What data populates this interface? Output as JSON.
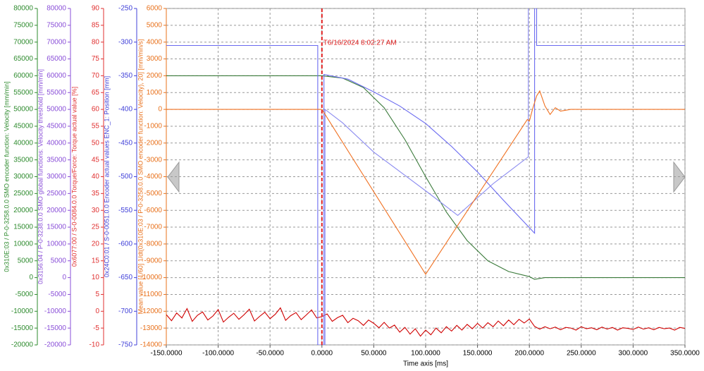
{
  "chart_data": {
    "type": "line",
    "xlabel": "Time axis [ms]",
    "xlim": [
      -150,
      350
    ],
    "xticks": [
      {
        "value": -150,
        "label": "-150.0000"
      },
      {
        "value": -100,
        "label": "-100.0000"
      },
      {
        "value": -50,
        "label": "-50.0000"
      },
      {
        "value": 0,
        "label": "0.0000"
      },
      {
        "value": 50,
        "label": "50.0000"
      },
      {
        "value": 100,
        "label": "100.0000"
      },
      {
        "value": 150,
        "label": "150.0000"
      },
      {
        "value": 200,
        "label": "200.0000"
      },
      {
        "value": 250,
        "label": "250.0000"
      },
      {
        "value": 300,
        "label": "300.0000"
      },
      {
        "value": 350,
        "label": "350.0000"
      }
    ],
    "grid": true,
    "cursor": {
      "x": 0,
      "label": "T6/16/2024 8:02:27 AM",
      "color": "#e02020"
    },
    "y_axes": [
      {
        "label": "0x310E:03 / P-0-3258.0.0 SMO encoder function: Velocity [mm/min]",
        "color": "#2e8b2e",
        "ylim": [
          -20000,
          80000
        ],
        "yticks": [
          -20000,
          -15000,
          -10000,
          -5000,
          0,
          5000,
          10000,
          15000,
          20000,
          25000,
          30000,
          35000,
          40000,
          45000,
          50000,
          55000,
          60000,
          65000,
          70000,
          75000,
          80000
        ]
      },
      {
        "label": "0x3156:04 / P-0-3238.0.0 SMO global functions: Velocity threshold [mm/min]",
        "color": "#8a4fd8",
        "ylim": [
          -20000,
          80000
        ],
        "yticks": [
          -20000,
          -15000,
          -10000,
          -5000,
          0,
          5000,
          10000,
          15000,
          20000,
          25000,
          30000,
          35000,
          40000,
          45000,
          50000,
          55000,
          60000,
          65000,
          70000,
          75000,
          80000
        ]
      },
      {
        "label": "0x6077:00 / S-0-0084.0.0 Torque/Force: Torque actual value [%]",
        "color": "#e03030",
        "ylim": [
          -10,
          90
        ],
        "yticks": [
          -10,
          -5,
          0,
          5,
          10,
          15,
          20,
          25,
          30,
          35,
          40,
          45,
          50,
          55,
          60,
          65,
          70,
          75,
          80,
          85,
          90
        ]
      },
      {
        "label": "0x24C0:01 / S-0-0051.0.0 Encoder actual values ENC_1: Position [mm]",
        "color": "#4040d8",
        "ylim": [
          -750,
          -250
        ],
        "yticks": [
          -750,
          -700,
          -650,
          -600,
          -550,
          -500,
          -450,
          -400,
          -350,
          -300,
          -250
        ]
      },
      {
        "label": "Mean value [1/60] 1/dt(0x310E:03 / P-0-3258.0.0 SMO encoder function: Velocity), 20] [mm/min/s]",
        "color": "#e8701a",
        "ylim": [
          -14000,
          6000
        ],
        "yticks": [
          -14000,
          -13000,
          -12000,
          -11000,
          -10000,
          -9000,
          -8000,
          -7000,
          -6000,
          -5000,
          -4000,
          -3000,
          -2000,
          -1000,
          0,
          1000,
          2000,
          3000,
          4000,
          5000,
          6000
        ]
      }
    ],
    "series": [
      {
        "color": "#d00000",
        "axis": 2,
        "x": [
          -150,
          -145,
          -140,
          -135,
          -130,
          -125,
          -120,
          -115,
          -110,
          -105,
          -100,
          -95,
          -90,
          -85,
          -80,
          -75,
          -70,
          -65,
          -60,
          -55,
          -50,
          -45,
          -40,
          -35,
          -30,
          -25,
          -20,
          -15,
          -10,
          -5,
          0,
          5,
          10,
          15,
          20,
          25,
          30,
          35,
          40,
          45,
          50,
          55,
          60,
          65,
          70,
          75,
          80,
          85,
          90,
          95,
          100,
          105,
          110,
          115,
          120,
          125,
          130,
          135,
          140,
          145,
          150,
          155,
          160,
          165,
          170,
          175,
          180,
          185,
          190,
          195,
          200,
          205,
          210,
          215,
          220,
          225,
          230,
          235,
          240,
          245,
          250,
          255,
          260,
          265,
          270,
          275,
          280,
          285,
          290,
          295,
          300,
          305,
          310,
          315,
          320,
          325,
          330,
          335,
          340,
          345,
          350
        ],
        "values": [
          -1.0,
          -2.8,
          -0.5,
          -2.0,
          0.8,
          -3.0,
          -1.2,
          -0.2,
          -2.6,
          -1.4,
          0.5,
          -3.2,
          -1.8,
          -0.6,
          -2.4,
          -1.0,
          0.6,
          -2.9,
          -1.5,
          -0.3,
          -2.2,
          -0.9,
          1.0,
          -2.7,
          -1.3,
          -0.4,
          -2.5,
          -1.1,
          0.4,
          -2.0,
          -1.6,
          -0.8,
          -3.0,
          -1.9,
          -1.2,
          -3.4,
          -2.1,
          -2.8,
          -4.2,
          -2.6,
          -3.6,
          -4.9,
          -3.3,
          -5.0,
          -4.1,
          -6.2,
          -4.8,
          -6.8,
          -5.2,
          -7.4,
          -5.6,
          -7.0,
          -5.0,
          -6.4,
          -4.6,
          -5.9,
          -4.2,
          -5.6,
          -3.9,
          -5.2,
          -3.6,
          -5.0,
          -3.4,
          -4.6,
          -2.9,
          -4.3,
          -2.6,
          -4.0,
          -2.4,
          -3.5,
          -2.3,
          -4.5,
          -5.3,
          -4.6,
          -5.2,
          -4.7,
          -5.5,
          -4.8,
          -5.0,
          -5.6,
          -4.6,
          -5.2,
          -4.9,
          -5.5,
          -4.7,
          -5.3,
          -4.8,
          -5.6,
          -4.9,
          -5.1,
          -5.4,
          -4.7,
          -5.3,
          -4.9,
          -5.5,
          -4.8,
          -5.2,
          -5.0,
          -5.6,
          -4.8,
          -5.1
        ]
      },
      {
        "color": "#3a7a3a",
        "axis": 0,
        "x": [
          -150,
          0,
          20,
          40,
          60,
          80,
          100,
          120,
          140,
          160,
          180,
          200,
          205,
          215,
          350
        ],
        "values": [
          60000,
          60000,
          59300,
          56500,
          50500,
          41000,
          30000,
          19500,
          11000,
          5000,
          1800,
          300,
          -500,
          0,
          0
        ]
      },
      {
        "color": "#6a6af0",
        "axis": 3,
        "x": [
          -150,
          -4,
          -4,
          2,
          2,
          25,
          50,
          75,
          100,
          125,
          150,
          175,
          205,
          205,
          207,
          207,
          350
        ],
        "values": [
          -305,
          -305,
          -750,
          -750,
          -348,
          -355,
          -374,
          -395,
          -421,
          -455,
          -493,
          -535,
          -584,
          -250,
          -250,
          -305,
          -305
        ]
      },
      {
        "color": "#8a8af0",
        "axis": 1,
        "x": [
          3,
          3,
          20,
          50,
          100,
          131,
          165,
          199,
          199
        ],
        "values": [
          -20000,
          50000,
          46000,
          37300,
          25800,
          18500,
          27900,
          35900,
          80000
        ]
      },
      {
        "color": "#f07020",
        "axis": 4,
        "x": [
          -150,
          0,
          100,
          198,
          200,
          203,
          207,
          210,
          215,
          220,
          225,
          230,
          240,
          350
        ],
        "values": [
          0,
          0,
          -9800,
          -600,
          -700,
          0,
          800,
          1100,
          200,
          -300,
          100,
          -100,
          0,
          0
        ]
      }
    ]
  }
}
